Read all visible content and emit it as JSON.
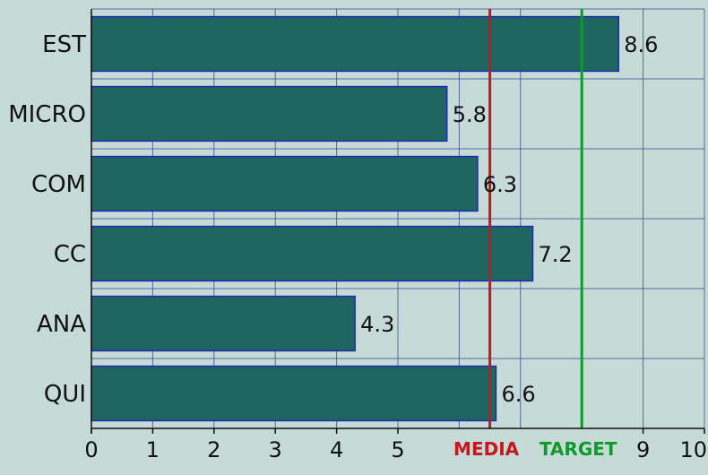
{
  "chart_data": {
    "type": "bar",
    "orientation": "horizontal",
    "categories": [
      "EST",
      "MICRO",
      "COM",
      "CC",
      "ANA",
      "QUI"
    ],
    "values": [
      8.6,
      5.8,
      6.3,
      7.2,
      4.3,
      6.6
    ],
    "value_labels": [
      "8.6",
      "5.8",
      "6.3",
      "7.2",
      "4.3",
      "6.6"
    ],
    "xlim": [
      0,
      10
    ],
    "x_ticks": [
      {
        "value": 0,
        "label": "0"
      },
      {
        "value": 1,
        "label": "1"
      },
      {
        "value": 2,
        "label": "2"
      },
      {
        "value": 3,
        "label": "3"
      },
      {
        "value": 4,
        "label": "4"
      },
      {
        "value": 5,
        "label": "5"
      },
      {
        "value": 9,
        "label": "9"
      },
      {
        "value": 10,
        "label": "10"
      }
    ],
    "reference_lines": [
      {
        "label": "MEDIA",
        "value": 6.5,
        "color": "#c8161d"
      },
      {
        "label": "TARGET",
        "value": 8.0,
        "color": "#0f9a2c"
      }
    ],
    "bar_color": "#1f6660",
    "bar_edge_color": "#1c2bb0",
    "background_color": "#c6dad8",
    "grid": true,
    "grid_color": "#2b3a8a",
    "title": "",
    "xlabel": "",
    "ylabel": ""
  }
}
